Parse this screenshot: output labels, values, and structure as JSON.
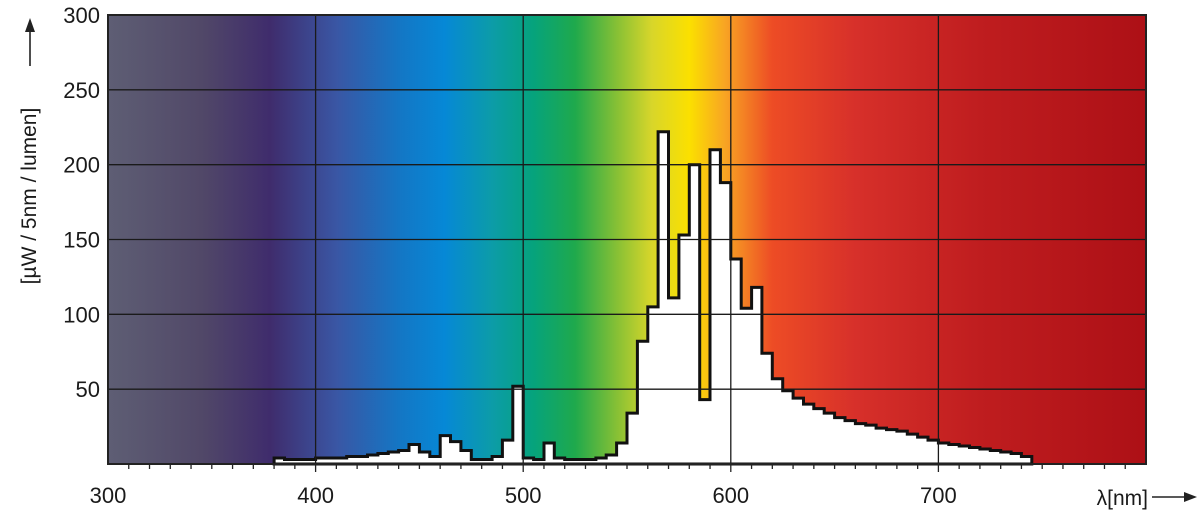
{
  "chart_data": {
    "type": "area",
    "xlabel": "λ[nm]",
    "ylabel": "[µW / 5nm / lumen]",
    "xlim": [
      300,
      800
    ],
    "ylim": [
      0,
      300
    ],
    "x_ticks": [
      300,
      400,
      500,
      600,
      700
    ],
    "y_ticks": [
      50,
      100,
      150,
      200,
      250,
      300
    ],
    "x_tick_labels": [
      "300",
      "400",
      "500",
      "600",
      "700"
    ],
    "y_tick_labels": [
      "50",
      "100",
      "150",
      "200",
      "250",
      "300"
    ],
    "grid": true,
    "background": "visible spectrum color gradient",
    "spectrum_colors": [
      {
        "nm": 300,
        "color": "#5e5e74"
      },
      {
        "nm": 345,
        "color": "#514868"
      },
      {
        "nm": 378,
        "color": "#3f2c6c"
      },
      {
        "nm": 410,
        "color": "#3a56a4"
      },
      {
        "nm": 440,
        "color": "#1476c4"
      },
      {
        "nm": 462,
        "color": "#0688d6"
      },
      {
        "nm": 485,
        "color": "#0c9ca8"
      },
      {
        "nm": 505,
        "color": "#06a37c"
      },
      {
        "nm": 525,
        "color": "#1fa94c"
      },
      {
        "nm": 545,
        "color": "#86c035"
      },
      {
        "nm": 562,
        "color": "#d8d62a"
      },
      {
        "nm": 580,
        "color": "#fbe000"
      },
      {
        "nm": 597,
        "color": "#f8a523"
      },
      {
        "nm": 620,
        "color": "#ed4c25"
      },
      {
        "nm": 660,
        "color": "#d7302a"
      },
      {
        "nm": 720,
        "color": "#bf1d1f"
      },
      {
        "nm": 800,
        "color": "#ad1016"
      }
    ],
    "series": [
      {
        "bin_width_nm": 5,
        "x_start": [
          380,
          385,
          390,
          395,
          400,
          405,
          410,
          415,
          420,
          425,
          430,
          435,
          440,
          445,
          450,
          455,
          460,
          465,
          470,
          475,
          480,
          485,
          490,
          495,
          500,
          505,
          510,
          515,
          520,
          525,
          530,
          535,
          540,
          545,
          550,
          555,
          560,
          565,
          570,
          575,
          580,
          585,
          590,
          595,
          600,
          605,
          610,
          615,
          620,
          625,
          630,
          635,
          640,
          645,
          650,
          655,
          660,
          665,
          670,
          675,
          680,
          685,
          690,
          695,
          700,
          705,
          710,
          715,
          720,
          725,
          730,
          735,
          740
        ],
        "values": [
          4,
          3,
          3,
          3,
          4,
          4,
          4,
          5,
          5,
          6,
          7,
          8,
          9,
          13,
          8,
          5,
          19,
          15,
          9,
          3,
          3,
          5,
          16,
          52,
          4,
          3,
          14,
          4,
          3,
          3,
          3,
          4,
          6,
          14,
          34,
          82,
          105,
          222,
          111,
          153,
          200,
          43,
          210,
          188,
          137,
          104,
          118,
          74,
          57,
          49,
          44,
          40,
          37,
          34,
          31,
          29,
          27,
          26,
          24,
          23,
          22,
          20,
          18,
          16,
          14,
          13,
          12,
          11,
          10,
          9,
          8,
          7,
          5
        ]
      }
    ]
  }
}
